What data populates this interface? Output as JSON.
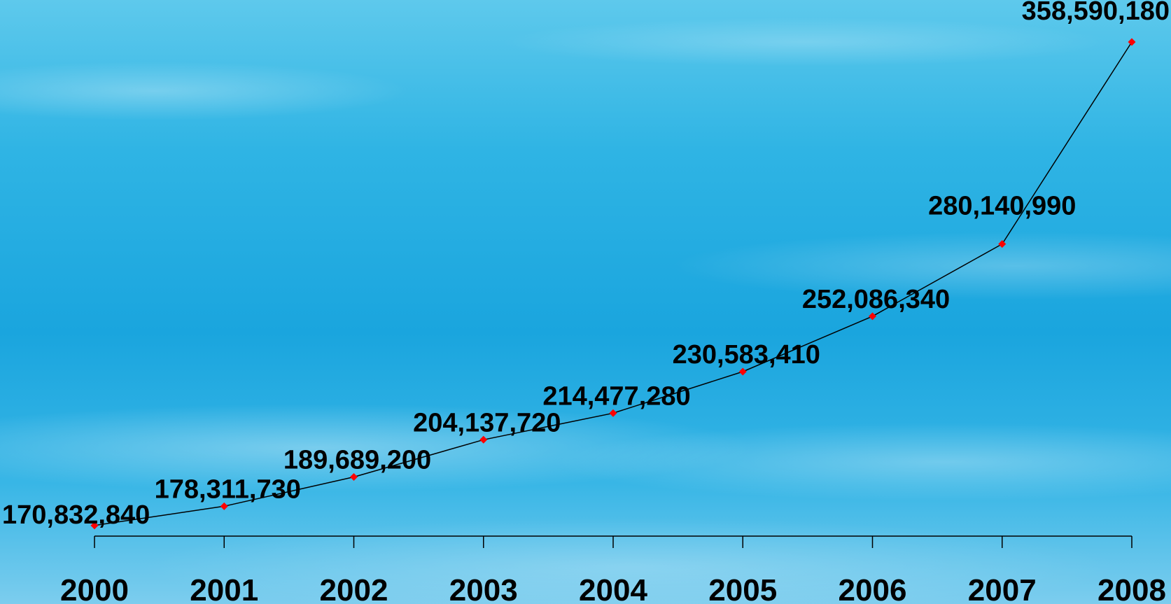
{
  "chart_data": {
    "type": "line",
    "title": "",
    "xlabel": "",
    "ylabel": "",
    "categories": [
      "2000",
      "2001",
      "2002",
      "2003",
      "2004",
      "2005",
      "2006",
      "2007",
      "2008"
    ],
    "series": [
      {
        "values": [
          170832840,
          178311730,
          189689200,
          204137720,
          214477280,
          230583410,
          252086340,
          280140990,
          358590180
        ],
        "data_labels": [
          "170,832,840",
          "178,311,730",
          "189,689,200",
          "204,137,720",
          "214,477,280",
          "230,583,410",
          "252,086,340",
          "280,140,990",
          "358,590,180"
        ],
        "line_color": "#000000",
        "marker_color": "#ff0000",
        "marker": "diamond"
      }
    ],
    "ylim": [
      150000000,
      370000000
    ],
    "grid": false,
    "legend": "none",
    "y_axis_visible": false
  },
  "colors": {
    "background": "#1ca9df",
    "text": "#000000"
  }
}
